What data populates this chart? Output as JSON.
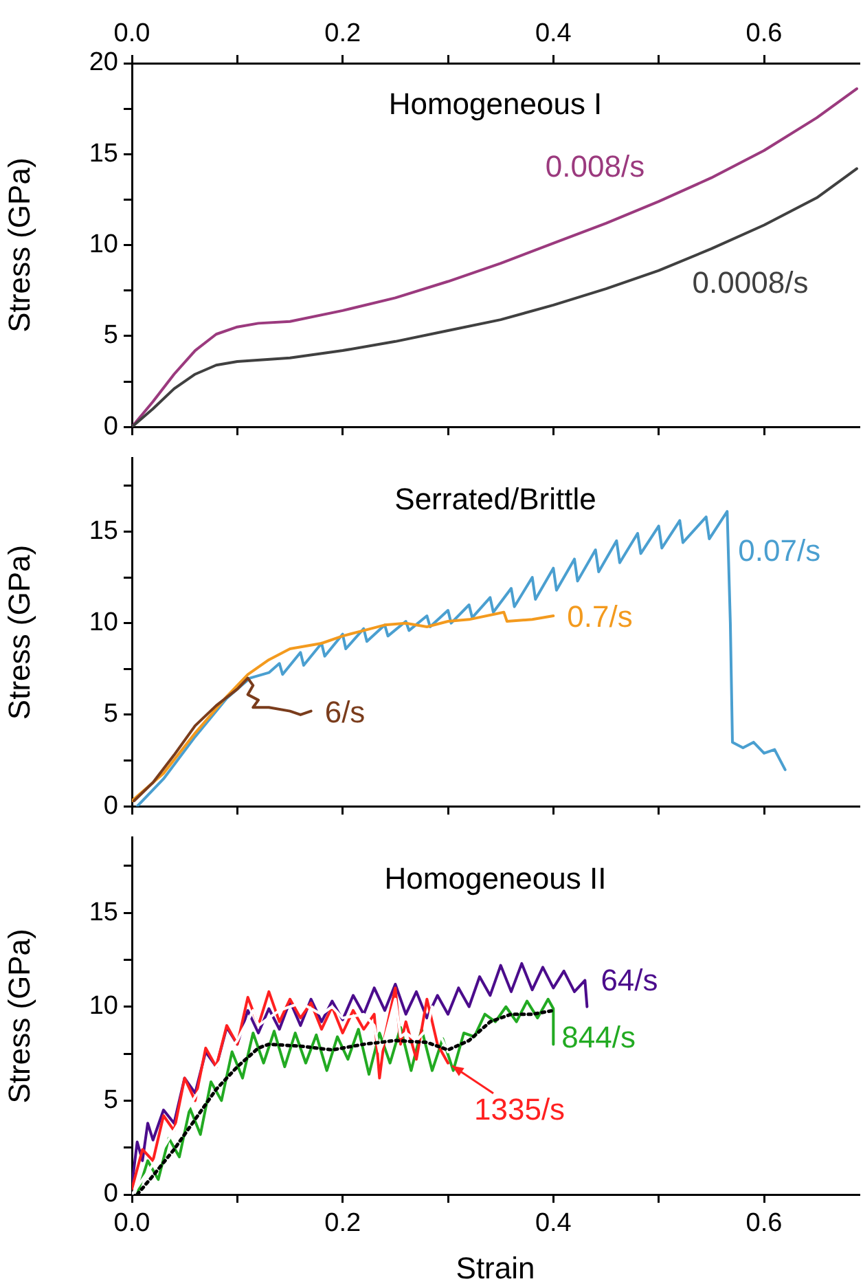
{
  "chart_data": [
    {
      "type": "line",
      "title": "Homogeneous I",
      "ylabel": "Stress (GPa)",
      "xlim": [
        0,
        0.69
      ],
      "ylim": [
        0,
        20
      ],
      "tick_labels": "y",
      "xticks": [
        {
          "value": 0,
          "label": null
        },
        {
          "value": 0.1,
          "label": null
        },
        {
          "value": 0.2,
          "label": null
        },
        {
          "value": 0.3,
          "label": null
        },
        {
          "value": 0.4,
          "label": null
        },
        {
          "value": 0.5,
          "label": null
        },
        {
          "value": 0.6,
          "label": null
        }
      ],
      "x2lim": [
        0,
        0.69
      ],
      "x2ticks": [
        {
          "value": 0,
          "label": "0.0"
        },
        {
          "value": 0.1,
          "label": null
        },
        0.2,
        {
          "value": 0.3,
          "label": null
        },
        0.4,
        {
          "value": 0.5,
          "label": null
        },
        0.6
      ],
      "yticks": [
        0,
        {
          "value": 2.5,
          "label": null
        },
        5,
        {
          "value": 7.5,
          "label": null
        },
        10,
        {
          "value": 12.5,
          "label": null
        },
        15,
        {
          "value": 17.5,
          "label": null
        },
        20
      ],
      "series": [
        {
          "name": "0.008/s",
          "color": "#9b3a7e",
          "x": [
            0,
            0.02,
            0.04,
            0.06,
            0.08,
            0.1,
            0.12,
            0.15,
            0.2,
            0.25,
            0.3,
            0.35,
            0.4,
            0.45,
            0.5,
            0.55,
            0.6,
            0.65,
            0.688
          ],
          "values": [
            0,
            1.4,
            2.9,
            4.2,
            5.1,
            5.5,
            5.7,
            5.8,
            6.4,
            7.1,
            8.0,
            9.0,
            10.1,
            11.2,
            12.4,
            13.7,
            15.2,
            17.0,
            18.6
          ]
        },
        {
          "name": "0.0008/s",
          "color": "#404040",
          "x": [
            0,
            0.02,
            0.04,
            0.06,
            0.08,
            0.1,
            0.15,
            0.2,
            0.25,
            0.3,
            0.35,
            0.4,
            0.45,
            0.5,
            0.55,
            0.6,
            0.65,
            0.688
          ],
          "values": [
            0,
            1.0,
            2.1,
            2.9,
            3.4,
            3.6,
            3.8,
            4.2,
            4.7,
            5.3,
            5.9,
            6.7,
            7.6,
            8.6,
            9.8,
            11.1,
            12.6,
            14.2
          ]
        }
      ]
    },
    {
      "type": "line",
      "title": "Serrated/Brittle",
      "ylabel": "Stress (GPa)",
      "xlim": [
        0,
        0.69
      ],
      "ylim": [
        0,
        19
      ],
      "tick_labels": "y",
      "xticks": [
        {
          "value": 0,
          "label": null
        },
        {
          "value": 0.1,
          "label": null
        },
        {
          "value": 0.2,
          "label": null
        },
        {
          "value": 0.3,
          "label": null
        },
        {
          "value": 0.4,
          "label": null
        },
        {
          "value": 0.5,
          "label": null
        },
        {
          "value": 0.6,
          "label": null
        }
      ],
      "yticks": [
        0,
        {
          "value": 2.5,
          "label": null
        },
        5,
        {
          "value": 7.5,
          "label": null
        },
        10,
        {
          "value": 12.5,
          "label": null
        },
        15,
        {
          "value": 17.5,
          "label": null
        }
      ],
      "series": [
        {
          "name": "0.07/s",
          "color": "#4a9fd0",
          "x": [
            0.005,
            0.03,
            0.06,
            0.09,
            0.112,
            0.13,
            0.14,
            0.143,
            0.16,
            0.163,
            0.18,
            0.183,
            0.2,
            0.203,
            0.22,
            0.223,
            0.24,
            0.243,
            0.26,
            0.263,
            0.28,
            0.283,
            0.3,
            0.303,
            0.32,
            0.323,
            0.34,
            0.343,
            0.36,
            0.363,
            0.38,
            0.383,
            0.4,
            0.403,
            0.42,
            0.423,
            0.44,
            0.443,
            0.46,
            0.463,
            0.48,
            0.483,
            0.5,
            0.503,
            0.52,
            0.523,
            0.545,
            0.548,
            0.565,
            0.568,
            0.57,
            0.58,
            0.59,
            0.6,
            0.61,
            0.62
          ],
          "values": [
            0,
            1.5,
            3.8,
            5.9,
            7.0,
            7.3,
            7.8,
            7.2,
            8.4,
            7.7,
            8.9,
            8.2,
            9.4,
            8.6,
            9.7,
            9.0,
            9.9,
            9.3,
            10.1,
            9.6,
            10.4,
            9.8,
            10.7,
            10.0,
            11.0,
            10.3,
            11.4,
            10.6,
            11.9,
            10.9,
            12.5,
            11.3,
            13.0,
            11.8,
            13.5,
            12.3,
            14.0,
            12.8,
            14.5,
            13.3,
            14.9,
            13.8,
            15.3,
            14.1,
            15.6,
            14.4,
            15.8,
            14.6,
            16.1,
            10.0,
            3.5,
            3.2,
            3.5,
            2.9,
            3.1,
            2.0
          ]
        },
        {
          "name": "0.7/s",
          "color": "#f39a1e",
          "x": [
            0,
            0.03,
            0.06,
            0.09,
            0.11,
            0.13,
            0.15,
            0.18,
            0.2,
            0.22,
            0.24,
            0.26,
            0.28,
            0.3,
            0.32,
            0.353,
            0.356,
            0.38,
            0.4
          ],
          "values": [
            0.3,
            1.8,
            4.0,
            6.0,
            7.2,
            8.0,
            8.6,
            8.9,
            9.3,
            9.6,
            9.9,
            10.0,
            9.8,
            10.1,
            10.2,
            10.6,
            10.1,
            10.2,
            10.4
          ]
        },
        {
          "name": "6/s",
          "color": "#7a3c1c",
          "x": [
            0.002,
            0.02,
            0.04,
            0.06,
            0.08,
            0.1,
            0.11,
            0.115,
            0.11,
            0.12,
            0.115,
            0.13,
            0.15,
            0.16,
            0.17
          ],
          "values": [
            0.3,
            1.3,
            2.8,
            4.4,
            5.5,
            6.4,
            7.0,
            6.6,
            6.1,
            5.8,
            5.4,
            5.4,
            5.2,
            5.0,
            5.2
          ]
        }
      ]
    },
    {
      "type": "line",
      "title": "Homogeneous II",
      "xlabel": "Strain",
      "ylabel": "Stress (GPa)",
      "xlim": [
        0,
        0.69
      ],
      "ylim": [
        0,
        19
      ],
      "xticks": [
        {
          "value": 0,
          "label": "0.0"
        },
        {
          "value": 0.1,
          "label": null
        },
        0.2,
        {
          "value": 0.3,
          "label": null
        },
        0.4,
        {
          "value": 0.5,
          "label": null
        },
        0.6
      ],
      "yticks": [
        0,
        {
          "value": 2.5,
          "label": null
        },
        5,
        {
          "value": 7.5,
          "label": null
        },
        10,
        {
          "value": 12.5,
          "label": null
        },
        15,
        {
          "value": 17.5,
          "label": null
        }
      ],
      "series": [
        {
          "name": "64/s",
          "color": "#4b0c8c",
          "x": [
            0,
            0.005,
            0.01,
            0.015,
            0.02,
            0.03,
            0.04,
            0.05,
            0.06,
            0.07,
            0.08,
            0.09,
            0.1,
            0.11,
            0.12,
            0.13,
            0.14,
            0.15,
            0.16,
            0.17,
            0.18,
            0.19,
            0.2,
            0.21,
            0.22,
            0.23,
            0.24,
            0.25,
            0.26,
            0.27,
            0.28,
            0.29,
            0.3,
            0.31,
            0.32,
            0.33,
            0.34,
            0.35,
            0.36,
            0.37,
            0.38,
            0.39,
            0.4,
            0.41,
            0.42,
            0.43,
            0.432
          ],
          "values": [
            0.5,
            2.8,
            1.8,
            3.8,
            2.9,
            4.5,
            3.8,
            6.2,
            5.4,
            7.6,
            6.8,
            8.9,
            8.0,
            9.8,
            8.6,
            9.9,
            8.8,
            10.3,
            9.0,
            10.4,
            9.2,
            10.3,
            9.3,
            10.6,
            9.6,
            11.0,
            9.8,
            11.2,
            9.6,
            10.8,
            9.4,
            10.6,
            9.6,
            11.0,
            10.0,
            11.6,
            10.6,
            12.2,
            10.8,
            12.3,
            10.9,
            12.1,
            11.0,
            11.9,
            10.8,
            11.4,
            10.0
          ]
        },
        {
          "name": "844/s",
          "color": "#22aa22",
          "x": [
            0.005,
            0.015,
            0.025,
            0.035,
            0.045,
            0.055,
            0.065,
            0.075,
            0.085,
            0.095,
            0.105,
            0.115,
            0.125,
            0.135,
            0.145,
            0.155,
            0.165,
            0.175,
            0.185,
            0.195,
            0.205,
            0.215,
            0.225,
            0.235,
            0.245,
            0.255,
            0.265,
            0.275,
            0.285,
            0.295,
            0.305,
            0.315,
            0.325,
            0.335,
            0.345,
            0.355,
            0.365,
            0.375,
            0.385,
            0.395,
            0.4,
            0.4
          ],
          "values": [
            0,
            1.8,
            0.8,
            3.0,
            2.0,
            4.6,
            3.2,
            6.0,
            5.0,
            7.6,
            6.2,
            8.6,
            7.0,
            8.7,
            6.8,
            8.6,
            7.0,
            8.5,
            6.6,
            8.4,
            7.2,
            8.8,
            6.4,
            8.6,
            7.0,
            8.9,
            6.6,
            8.8,
            6.6,
            8.3,
            6.6,
            8.6,
            8.4,
            9.6,
            9.2,
            10.0,
            9.2,
            10.3,
            9.4,
            10.4,
            9.9,
            8.0
          ]
        },
        {
          "name": "1335/s",
          "color": "#ff2020",
          "x": [
            0,
            0.01,
            0.02,
            0.03,
            0.04,
            0.05,
            0.06,
            0.07,
            0.08,
            0.09,
            0.1,
            0.11,
            0.12,
            0.13,
            0.14,
            0.15,
            0.16,
            0.17,
            0.18,
            0.19,
            0.2,
            0.21,
            0.22,
            0.23,
            0.235,
            0.24,
            0.25,
            0.255,
            0.26,
            0.27,
            0.28,
            0.29,
            0.3
          ],
          "values": [
            0.3,
            2.4,
            1.8,
            4.2,
            3.4,
            6.2,
            5.0,
            7.8,
            6.8,
            9.0,
            8.0,
            10.5,
            9.0,
            10.8,
            9.2,
            10.4,
            9.4,
            10.2,
            8.8,
            10.0,
            8.6,
            9.8,
            8.8,
            9.6,
            6.2,
            8.4,
            11.0,
            8.0,
            9.2,
            7.2,
            10.4,
            8.0,
            7.0
          ]
        },
        {
          "color": "#ffffff",
          "x": [
            0,
            0.02,
            0.04,
            0.06,
            0.08,
            0.1,
            0.115,
            0.12,
            0.14,
            0.16,
            0.18,
            0.19,
            0.2,
            0.22,
            0.23,
            0.235,
            0.24,
            0.25,
            0.255,
            0.26,
            0.27,
            0.28,
            0.285,
            0.29,
            0.3
          ],
          "values": [
            0,
            1.6,
            3.4,
            5.2,
            6.8,
            8.2,
            9.8,
            9.0,
            9.8,
            10.2,
            9.6,
            10.0,
            9.4,
            9.6,
            9.0,
            7.6,
            8.3,
            10.4,
            8.4,
            8.6,
            8.2,
            8.8,
            10.0,
            8.8,
            7.6
          ]
        },
        {
          "color": "#000000",
          "line_style": "dotted",
          "x": [
            0.005,
            0.02,
            0.04,
            0.06,
            0.08,
            0.1,
            0.12,
            0.13,
            0.16,
            0.19,
            0.22,
            0.25,
            0.28,
            0.3,
            0.32,
            0.34,
            0.36,
            0.38,
            0.4
          ],
          "values": [
            0,
            1.0,
            2.4,
            4.0,
            5.6,
            6.8,
            7.8,
            8.0,
            7.9,
            7.7,
            8.0,
            8.2,
            8.1,
            7.7,
            8.2,
            9.2,
            9.6,
            9.6,
            9.8
          ]
        }
      ]
    }
  ]
}
